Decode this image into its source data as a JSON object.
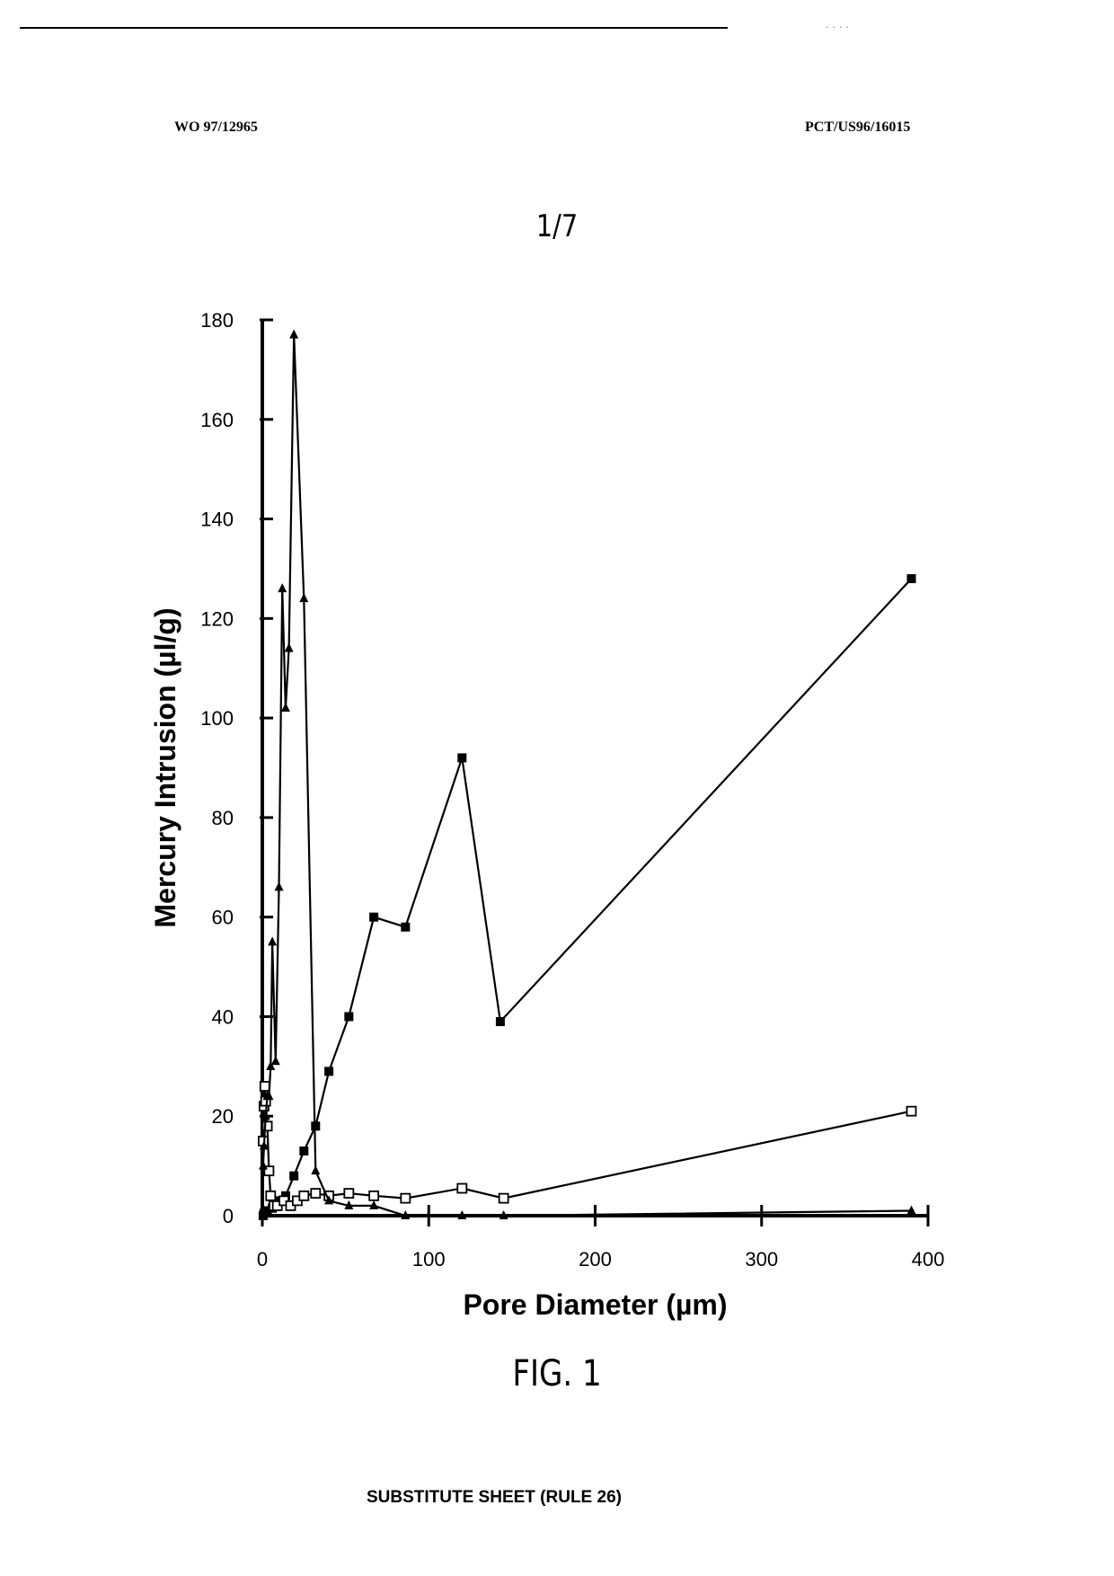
{
  "header": {
    "left": "WO 97/12965",
    "right": "PCT/US96/16015",
    "scan_marks": "...."
  },
  "sheet_number": "1/7",
  "figure_caption": "FIG. 1",
  "footer": "SUBSTITUTE SHEET (RULE 26)",
  "chart_data": {
    "type": "line",
    "title": "",
    "xlabel": "Pore Diameter (µm)",
    "ylabel": "Mercury Intrusion (µl/g)",
    "xlim": [
      0,
      400
    ],
    "ylim": [
      0,
      180
    ],
    "xticks": [
      0,
      100,
      200,
      300,
      400
    ],
    "yticks": [
      0,
      20,
      40,
      60,
      80,
      100,
      120,
      140,
      160,
      180
    ],
    "grid": false,
    "legend": "none",
    "series": [
      {
        "marker": "filled-square",
        "points": [
          [
            0.5,
            0
          ],
          [
            1,
            0.5
          ],
          [
            3,
            1
          ],
          [
            6,
            1.5
          ],
          [
            10,
            3
          ],
          [
            14,
            4
          ],
          [
            19,
            8
          ],
          [
            25,
            13
          ],
          [
            32,
            18
          ],
          [
            40,
            29
          ],
          [
            52,
            40
          ],
          [
            67,
            60
          ],
          [
            86,
            58
          ],
          [
            120,
            92
          ],
          [
            143,
            39
          ],
          [
            390,
            128
          ]
        ]
      },
      {
        "marker": "open-square",
        "points": [
          [
            0.5,
            15
          ],
          [
            1,
            22
          ],
          [
            1.5,
            26
          ],
          [
            2,
            23
          ],
          [
            3,
            18
          ],
          [
            4,
            9
          ],
          [
            5,
            4
          ],
          [
            7,
            2
          ],
          [
            9,
            2
          ],
          [
            13,
            3
          ],
          [
            17,
            2
          ],
          [
            21,
            3
          ],
          [
            25,
            4
          ],
          [
            32,
            4.5
          ],
          [
            40,
            4
          ],
          [
            52,
            4.5
          ],
          [
            67,
            4
          ],
          [
            86,
            3.5
          ],
          [
            120,
            5.5
          ],
          [
            145,
            3.5
          ],
          [
            390,
            21
          ]
        ]
      },
      {
        "marker": "filled-triangle",
        "points": [
          [
            0.5,
            10
          ],
          [
            1,
            14
          ],
          [
            2,
            20
          ],
          [
            3,
            24
          ],
          [
            4,
            24
          ],
          [
            5,
            30
          ],
          [
            6,
            55
          ],
          [
            8,
            31
          ],
          [
            10,
            66
          ],
          [
            12,
            126
          ],
          [
            14,
            102
          ],
          [
            16,
            114
          ],
          [
            19,
            177
          ],
          [
            25,
            124
          ],
          [
            32,
            9
          ],
          [
            40,
            3
          ],
          [
            52,
            2
          ],
          [
            67,
            2
          ],
          [
            86,
            0
          ],
          [
            120,
            0
          ],
          [
            145,
            0
          ],
          [
            390,
            1
          ]
        ]
      }
    ]
  }
}
